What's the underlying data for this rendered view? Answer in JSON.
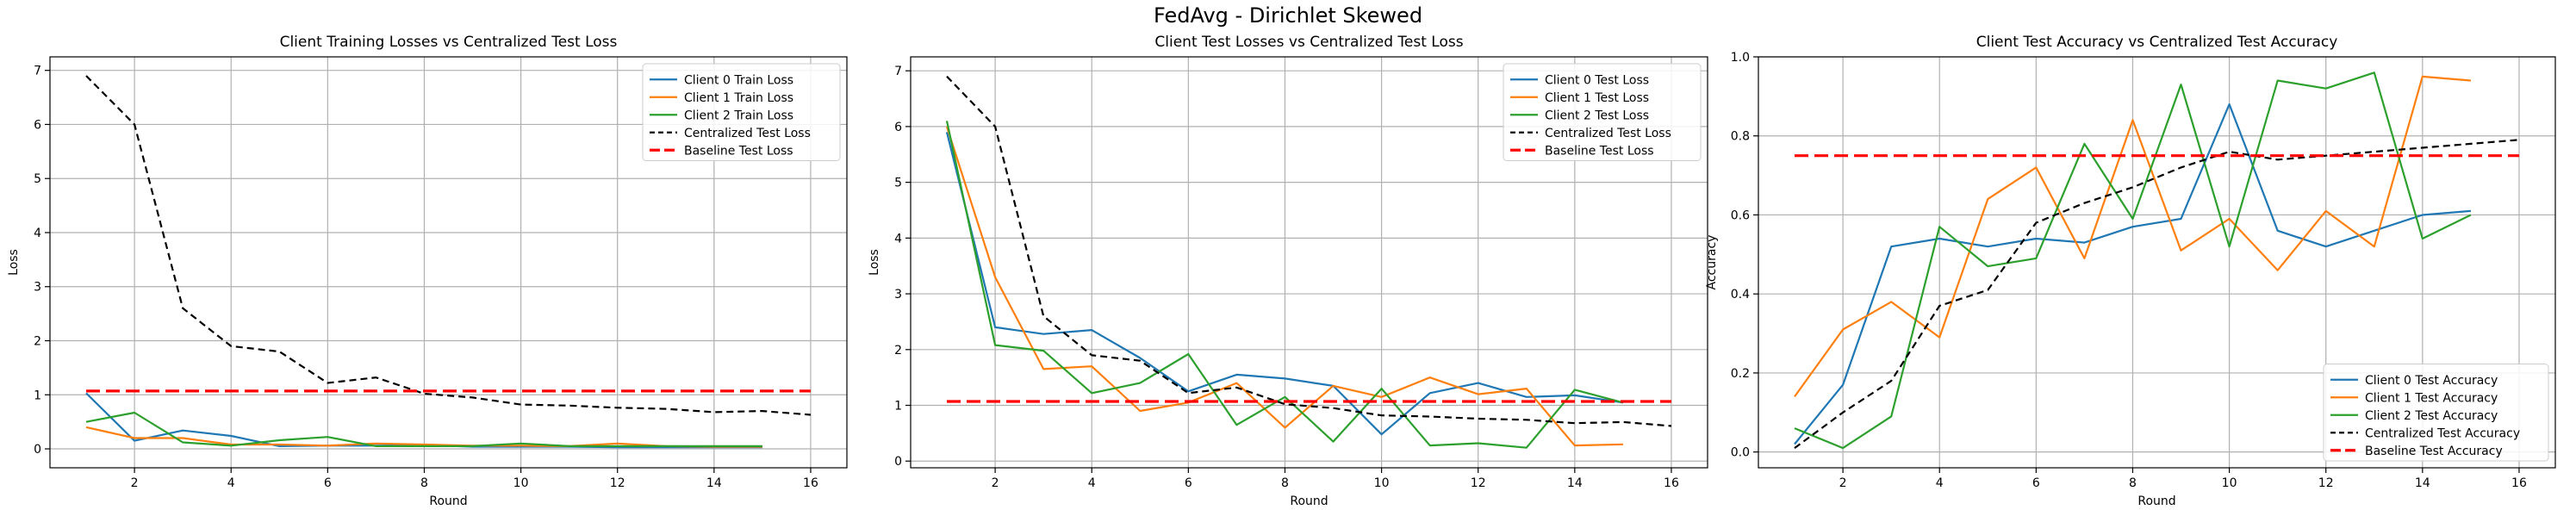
{
  "suptitle": "FedAvg - Dirichlet Skewed",
  "chart_data": [
    {
      "type": "line",
      "title": "Client Training Losses vs Centralized Test Loss",
      "xlabel": "Round",
      "ylabel": "Loss",
      "xlim": [
        0.25,
        16.75
      ],
      "ylim": [
        -0.35,
        7.25
      ],
      "xticks": [
        2,
        4,
        6,
        8,
        10,
        12,
        14,
        16
      ],
      "yticks": [
        0,
        1,
        2,
        3,
        4,
        5,
        6,
        7
      ],
      "grid": true,
      "legend_position": "top-right",
      "series": [
        {
          "name": "Client 0 Train Loss",
          "color": "#1f77b4",
          "dash": "solid",
          "x": [
            1,
            2,
            3,
            4,
            5,
            6,
            7,
            8,
            9,
            10,
            11,
            12,
            13,
            14,
            15
          ],
          "y": [
            1.03,
            0.15,
            0.34,
            0.24,
            0.05,
            0.06,
            0.06,
            0.07,
            0.04,
            0.04,
            0.04,
            0.03,
            0.03,
            0.03,
            0.03
          ]
        },
        {
          "name": "Client 1 Train Loss",
          "color": "#ff7f0e",
          "dash": "solid",
          "x": [
            1,
            2,
            3,
            4,
            5,
            6,
            7,
            8,
            9,
            10,
            11,
            12,
            13,
            14,
            15
          ],
          "y": [
            0.4,
            0.2,
            0.2,
            0.08,
            0.08,
            0.06,
            0.1,
            0.08,
            0.06,
            0.06,
            0.05,
            0.1,
            0.05,
            0.04,
            0.04
          ]
        },
        {
          "name": "Client 2 Train Loss",
          "color": "#2ca02c",
          "dash": "solid",
          "x": [
            1,
            2,
            3,
            4,
            5,
            6,
            7,
            8,
            9,
            10,
            11,
            12,
            13,
            14,
            15
          ],
          "y": [
            0.5,
            0.67,
            0.12,
            0.06,
            0.16,
            0.22,
            0.05,
            0.05,
            0.05,
            0.1,
            0.05,
            0.05,
            0.05,
            0.05,
            0.05
          ]
        },
        {
          "name": "Centralized Test Loss",
          "color": "#000000",
          "dash": "short",
          "x": [
            1,
            2,
            3,
            4,
            5,
            6,
            7,
            8,
            9,
            10,
            11,
            12,
            13,
            14,
            15,
            16
          ],
          "y": [
            6.9,
            6.0,
            2.6,
            1.9,
            1.8,
            1.22,
            1.32,
            1.02,
            0.95,
            0.82,
            0.8,
            0.76,
            0.74,
            0.68,
            0.7,
            0.63
          ]
        },
        {
          "name": "Baseline Test Loss",
          "color": "#ff0000",
          "dash": "long",
          "x": [
            1,
            16
          ],
          "y": [
            1.07,
            1.07
          ]
        }
      ]
    },
    {
      "type": "line",
      "title": "Client Test Losses vs Centralized Test Loss",
      "xlabel": "Round",
      "ylabel": "Loss",
      "xlim": [
        0.25,
        16.75
      ],
      "ylim": [
        -0.12,
        7.25
      ],
      "xticks": [
        2,
        4,
        6,
        8,
        10,
        12,
        14,
        16
      ],
      "yticks": [
        0,
        1,
        2,
        3,
        4,
        5,
        6,
        7
      ],
      "grid": true,
      "legend_position": "top-right",
      "series": [
        {
          "name": "Client 0 Test Loss",
          "color": "#1f77b4",
          "dash": "solid",
          "x": [
            1,
            2,
            3,
            4,
            5,
            6,
            7,
            8,
            9,
            10,
            11,
            12,
            13,
            14,
            15
          ],
          "y": [
            5.9,
            2.4,
            2.28,
            2.35,
            1.85,
            1.25,
            1.55,
            1.48,
            1.35,
            0.48,
            1.22,
            1.4,
            1.15,
            1.18,
            1.05
          ]
        },
        {
          "name": "Client 1 Test Loss",
          "color": "#ff7f0e",
          "dash": "solid",
          "x": [
            1,
            2,
            3,
            4,
            5,
            6,
            7,
            8,
            9,
            10,
            11,
            12,
            13,
            14,
            15
          ],
          "y": [
            6.0,
            3.3,
            1.65,
            1.7,
            0.9,
            1.05,
            1.4,
            0.6,
            1.35,
            1.15,
            1.5,
            1.2,
            1.3,
            0.28,
            0.3
          ]
        },
        {
          "name": "Client 2 Test Loss",
          "color": "#2ca02c",
          "dash": "solid",
          "x": [
            1,
            2,
            3,
            4,
            5,
            6,
            7,
            8,
            9,
            10,
            11,
            12,
            13,
            14,
            15
          ],
          "y": [
            6.1,
            2.08,
            1.98,
            1.22,
            1.4,
            1.92,
            0.65,
            1.15,
            0.35,
            1.3,
            0.28,
            0.32,
            0.24,
            1.28,
            1.05
          ]
        },
        {
          "name": "Centralized Test Loss",
          "color": "#000000",
          "dash": "short",
          "x": [
            1,
            2,
            3,
            4,
            5,
            6,
            7,
            8,
            9,
            10,
            11,
            12,
            13,
            14,
            15,
            16
          ],
          "y": [
            6.9,
            6.0,
            2.6,
            1.9,
            1.8,
            1.22,
            1.32,
            1.02,
            0.95,
            0.82,
            0.8,
            0.76,
            0.74,
            0.68,
            0.7,
            0.63
          ]
        },
        {
          "name": "Baseline Test Loss",
          "color": "#ff0000",
          "dash": "long",
          "x": [
            1,
            16
          ],
          "y": [
            1.07,
            1.07
          ]
        }
      ]
    },
    {
      "type": "line",
      "title": "Client Test Accuracy vs Centralized Test Accuracy",
      "xlabel": "Round",
      "ylabel": "Accuracy",
      "xlim": [
        0.25,
        16.75
      ],
      "ylim": [
        -0.04,
        1.0
      ],
      "xticks": [
        2,
        4,
        6,
        8,
        10,
        12,
        14,
        16
      ],
      "yticks": [
        0.0,
        0.2,
        0.4,
        0.6,
        0.8,
        1.0
      ],
      "ytick_decimals": 1,
      "grid": true,
      "legend_position": "bottom-right",
      "series": [
        {
          "name": "Client 0 Test Accuracy",
          "color": "#1f77b4",
          "dash": "solid",
          "x": [
            1,
            2,
            3,
            4,
            5,
            6,
            7,
            8,
            9,
            10,
            11,
            12,
            13,
            14,
            15
          ],
          "y": [
            0.02,
            0.17,
            0.52,
            0.54,
            0.52,
            0.54,
            0.53,
            0.57,
            0.59,
            0.88,
            0.56,
            0.52,
            0.56,
            0.6,
            0.61
          ]
        },
        {
          "name": "Client 1 Test Accuracy",
          "color": "#ff7f0e",
          "dash": "solid",
          "x": [
            1,
            2,
            3,
            4,
            5,
            6,
            7,
            8,
            9,
            10,
            11,
            12,
            13,
            14,
            15
          ],
          "y": [
            0.14,
            0.31,
            0.38,
            0.29,
            0.64,
            0.72,
            0.49,
            0.84,
            0.51,
            0.59,
            0.46,
            0.61,
            0.52,
            0.95,
            0.94
          ]
        },
        {
          "name": "Client 2 Test Accuracy",
          "color": "#2ca02c",
          "dash": "solid",
          "x": [
            1,
            2,
            3,
            4,
            5,
            6,
            7,
            8,
            9,
            10,
            11,
            12,
            13,
            14,
            15
          ],
          "y": [
            0.06,
            0.01,
            0.09,
            0.57,
            0.47,
            0.49,
            0.78,
            0.59,
            0.93,
            0.52,
            0.94,
            0.92,
            0.96,
            0.54,
            0.6
          ]
        },
        {
          "name": "Centralized Test Accuracy",
          "color": "#000000",
          "dash": "short",
          "x": [
            1,
            2,
            3,
            4,
            5,
            6,
            7,
            8,
            9,
            10,
            11,
            12,
            13,
            14,
            15,
            16
          ],
          "y": [
            0.01,
            0.1,
            0.18,
            0.37,
            0.41,
            0.58,
            0.63,
            0.67,
            0.72,
            0.76,
            0.74,
            0.75,
            0.76,
            0.77,
            0.78,
            0.79
          ]
        },
        {
          "name": "Baseline Test Accuracy",
          "color": "#ff0000",
          "dash": "long",
          "x": [
            1,
            16
          ],
          "y": [
            0.75,
            0.75
          ]
        }
      ]
    }
  ]
}
